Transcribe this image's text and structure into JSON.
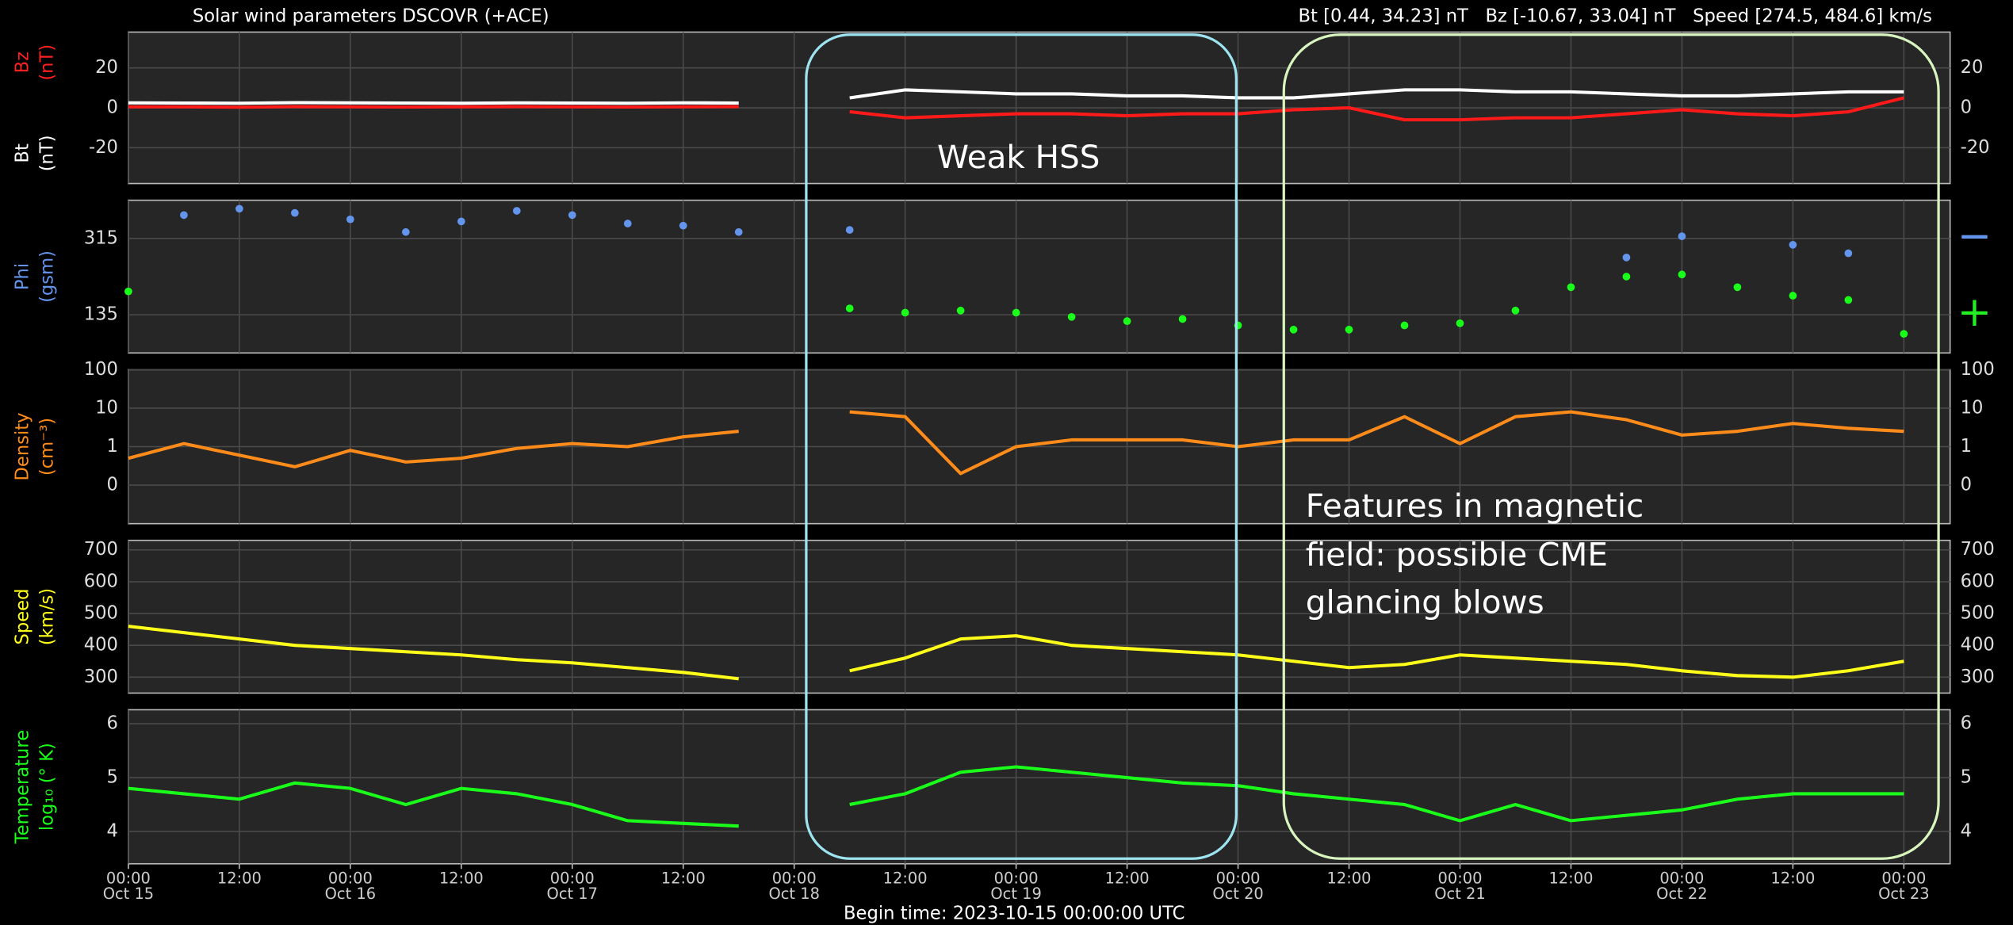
{
  "title": "Solar wind parameters DSCOVR (+ACE)",
  "summary": "Bt [0.44, 34.23] nT   Bz [-10.67, 33.04] nT   Speed [274.5, 484.6] km/s",
  "begin_time": "Begin time: 2023-10-15 00:00:00 UTC",
  "annotations": [
    {
      "lines": [
        "Weak HSS"
      ]
    },
    {
      "lines": [
        "Features in magnetic",
        "field: possible CME",
        "glancing blows"
      ]
    }
  ],
  "chart_data": [
    {
      "type": "line",
      "ylabels": [
        {
          "lines": [
            "Bz",
            "(nT)"
          ],
          "color": "#ff2020"
        },
        {
          "lines": [
            "Bt",
            "(nT)"
          ],
          "color": "#ffffff"
        }
      ],
      "xlim": [
        0,
        197
      ],
      "ylim": [
        -38,
        38
      ],
      "yticks": [
        -20,
        0,
        20
      ],
      "mirror_ticks": true,
      "grid": true,
      "x": [
        0,
        6,
        12,
        18,
        24,
        30,
        36,
        42,
        48,
        54,
        60,
        66,
        72,
        78,
        84,
        90,
        96,
        102,
        108,
        114,
        120,
        126,
        132,
        138,
        144,
        150,
        156,
        162,
        168,
        174,
        180,
        186,
        192
      ],
      "series": [
        {
          "name": "Bz",
          "color": "#ff1a1a",
          "values": [
            0.5,
            0.5,
            0.3,
            0.6,
            0.5,
            0.4,
            0.5,
            0.6,
            0.5,
            0.4,
            0.5,
            0.6,
            null,
            -2,
            -5,
            -4,
            -3,
            -3,
            -4,
            -3,
            -3,
            -1,
            0,
            -6,
            -6,
            -5,
            -5,
            -3,
            -1,
            -3,
            -4,
            -2,
            5
          ]
        },
        {
          "name": "Bt",
          "color": "#ffffff",
          "values": [
            2.5,
            2.4,
            2.3,
            2.6,
            2.5,
            2.4,
            2.3,
            2.5,
            2.4,
            2.3,
            2.5,
            2.4,
            null,
            5,
            9,
            8,
            7,
            7,
            6,
            6,
            5,
            5,
            7,
            9,
            9,
            8,
            8,
            7,
            6,
            6,
            7,
            8,
            8
          ]
        }
      ]
    },
    {
      "type": "scatter",
      "ylabels": [
        {
          "lines": [
            "Phi",
            "(gsm)"
          ],
          "color": "#6495ed"
        }
      ],
      "xlim": [
        0,
        197
      ],
      "ylim": [
        45,
        405
      ],
      "yticks": [
        135,
        315
      ],
      "mirror_ticks": false,
      "grid": true,
      "right_markers": [
        {
          "label": "+",
          "color": "#22ee22"
        },
        {
          "label": "−",
          "color": "#6495ed"
        }
      ],
      "x": [
        0,
        6,
        12,
        18,
        24,
        30,
        36,
        42,
        48,
        54,
        60,
        66,
        72,
        78,
        84,
        90,
        96,
        102,
        108,
        114,
        120,
        126,
        132,
        138,
        144,
        150,
        156,
        162,
        168,
        174,
        180,
        186,
        192
      ],
      "series": [
        {
          "name": "Phi toward",
          "color": "#6495ed",
          "values": [
            null,
            370,
            385,
            375,
            360,
            330,
            355,
            380,
            370,
            350,
            345,
            330,
            null,
            335,
            null,
            null,
            null,
            null,
            null,
            null,
            null,
            null,
            null,
            null,
            null,
            null,
            null,
            270,
            320,
            null,
            300,
            280,
            null
          ]
        },
        {
          "name": "Phi away",
          "color": "#1aff1a",
          "values": [
            190,
            null,
            null,
            null,
            null,
            null,
            null,
            null,
            null,
            null,
            null,
            null,
            null,
            150,
            140,
            145,
            140,
            130,
            120,
            125,
            110,
            100,
            100,
            110,
            115,
            145,
            200,
            225,
            230,
            200,
            180,
            170,
            90
          ]
        }
      ]
    },
    {
      "type": "line",
      "ylabels": [
        {
          "lines": [
            "Density",
            "(cm⁻³)"
          ],
          "color": "#ff8c1a"
        }
      ],
      "xlim": [
        0,
        197
      ],
      "ylim": [
        0.01,
        100
      ],
      "log": true,
      "yticks": [
        {
          "value": 0.1,
          "label": "0"
        },
        1,
        10,
        100
      ],
      "mirror_ticks": true,
      "grid": true,
      "x": [
        0,
        6,
        12,
        18,
        24,
        30,
        36,
        42,
        48,
        54,
        60,
        66,
        72,
        78,
        84,
        90,
        96,
        102,
        108,
        114,
        120,
        126,
        132,
        138,
        144,
        150,
        156,
        162,
        168,
        174,
        180,
        186,
        192
      ],
      "series": [
        {
          "name": "Density",
          "color": "#ff8c1a",
          "values": [
            0.5,
            1.2,
            0.6,
            0.3,
            0.8,
            0.4,
            0.5,
            0.9,
            1.2,
            1.0,
            1.8,
            2.5,
            null,
            8,
            6,
            0.2,
            1.0,
            1.5,
            1.5,
            1.5,
            1.0,
            1.5,
            1.5,
            6,
            1.2,
            6,
            8,
            5,
            2,
            2.5,
            4,
            3,
            2.5
          ]
        }
      ]
    },
    {
      "type": "line",
      "ylabels": [
        {
          "lines": [
            "Speed",
            "(km/s)"
          ],
          "color": "#ffff1a"
        }
      ],
      "xlim": [
        0,
        197
      ],
      "ylim": [
        250,
        730
      ],
      "yticks": [
        300,
        400,
        500,
        600,
        700
      ],
      "mirror_ticks": true,
      "grid": true,
      "x": [
        0,
        6,
        12,
        18,
        24,
        30,
        36,
        42,
        48,
        54,
        60,
        66,
        72,
        78,
        84,
        90,
        96,
        102,
        108,
        114,
        120,
        126,
        132,
        138,
        144,
        150,
        156,
        162,
        168,
        174,
        180,
        186,
        192
      ],
      "series": [
        {
          "name": "Speed",
          "color": "#ffff1a",
          "values": [
            460,
            440,
            420,
            400,
            390,
            380,
            370,
            355,
            345,
            330,
            315,
            295,
            null,
            320,
            360,
            420,
            430,
            400,
            390,
            380,
            370,
            350,
            330,
            340,
            370,
            360,
            350,
            340,
            320,
            305,
            300,
            320,
            350
          ]
        }
      ]
    },
    {
      "type": "line",
      "ylabels": [
        {
          "lines": [
            "Temperature",
            "log₁₀ (° K)"
          ],
          "color": "#1aff1a"
        }
      ],
      "xlim": [
        0,
        197
      ],
      "ylim": [
        3.4,
        6.26
      ],
      "yticks": [
        4,
        5,
        6
      ],
      "mirror_ticks": true,
      "grid": true,
      "xticks": [
        {
          "value": 0,
          "label": "00:00"
        },
        {
          "value": 12,
          "label": "12:00"
        },
        {
          "value": 24,
          "label": "00:00"
        },
        {
          "value": 36,
          "label": "12:00"
        },
        {
          "value": 48,
          "label": "00:00"
        },
        {
          "value": 60,
          "label": "12:00"
        },
        {
          "value": 72,
          "label": "00:00"
        },
        {
          "value": 84,
          "label": "12:00"
        },
        {
          "value": 96,
          "label": "00:00"
        },
        {
          "value": 108,
          "label": "12:00"
        },
        {
          "value": 120,
          "label": "00:00"
        },
        {
          "value": 132,
          "label": "12:00"
        },
        {
          "value": 144,
          "label": "00:00"
        },
        {
          "value": 156,
          "label": "12:00"
        },
        {
          "value": 168,
          "label": "00:00"
        },
        {
          "value": 180,
          "label": "12:00"
        },
        {
          "value": 192,
          "label": "00:00"
        }
      ],
      "xdates": [
        {
          "value": 0,
          "label": "Oct 15"
        },
        {
          "value": 24,
          "label": "Oct 16"
        },
        {
          "value": 48,
          "label": "Oct 17"
        },
        {
          "value": 72,
          "label": "Oct 18"
        },
        {
          "value": 96,
          "label": "Oct 19"
        },
        {
          "value": 120,
          "label": "Oct 20"
        },
        {
          "value": 144,
          "label": "Oct 21"
        },
        {
          "value": 168,
          "label": "Oct 22"
        },
        {
          "value": 192,
          "label": "Oct 23"
        }
      ],
      "x": [
        0,
        6,
        12,
        18,
        24,
        30,
        36,
        42,
        48,
        54,
        60,
        66,
        72,
        78,
        84,
        90,
        96,
        102,
        108,
        114,
        120,
        126,
        132,
        138,
        144,
        150,
        156,
        162,
        168,
        174,
        180,
        186,
        192
      ],
      "series": [
        {
          "name": "Temperature",
          "color": "#1aff1a",
          "values": [
            4.8,
            4.7,
            4.6,
            4.9,
            4.8,
            4.5,
            4.8,
            4.7,
            4.5,
            4.2,
            4.15,
            4.1,
            null,
            4.5,
            4.7,
            5.1,
            5.2,
            5.1,
            5.0,
            4.9,
            4.85,
            4.7,
            4.6,
            4.5,
            4.2,
            4.5,
            4.2,
            4.3,
            4.4,
            4.6,
            4.7,
            4.7,
            4.7
          ]
        }
      ]
    }
  ]
}
